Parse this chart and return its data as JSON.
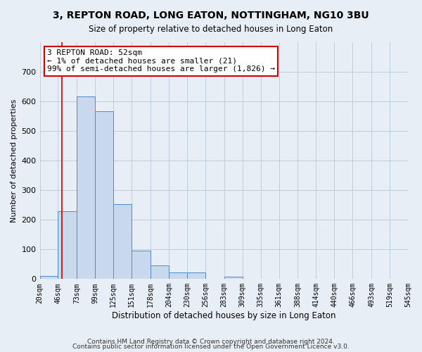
{
  "title": "3, REPTON ROAD, LONG EATON, NOTTINGHAM, NG10 3BU",
  "subtitle": "Size of property relative to detached houses in Long Eaton",
  "xlabel": "Distribution of detached houses by size in Long Eaton",
  "ylabel": "Number of detached properties",
  "bar_edges": [
    20,
    46,
    73,
    99,
    125,
    151,
    178,
    204,
    230,
    256,
    283,
    309,
    335,
    361,
    388,
    414,
    440,
    466,
    493,
    519,
    545
  ],
  "bar_heights": [
    10,
    230,
    617,
    568,
    254,
    95,
    47,
    22,
    22,
    0,
    8,
    0,
    0,
    0,
    0,
    0,
    0,
    0,
    0,
    0
  ],
  "bar_color": "#c8d9ee",
  "bar_edge_color": "#5588cc",
  "property_line_x": 52,
  "property_line_color": "#cc0000",
  "annotation_line1": "3 REPTON ROAD: 52sqm",
  "annotation_line2": "← 1% of detached houses are smaller (21)",
  "annotation_line3": "99% of semi-detached houses are larger (1,826) →",
  "annotation_box_color": "#ffffff",
  "annotation_box_edge_color": "#cc0000",
  "ylim": [
    0,
    800
  ],
  "yticks": [
    0,
    100,
    200,
    300,
    400,
    500,
    600,
    700,
    800
  ],
  "tick_labels": [
    "20sqm",
    "46sqm",
    "73sqm",
    "99sqm",
    "125sqm",
    "151sqm",
    "178sqm",
    "204sqm",
    "230sqm",
    "256sqm",
    "283sqm",
    "309sqm",
    "335sqm",
    "361sqm",
    "388sqm",
    "414sqm",
    "440sqm",
    "466sqm",
    "493sqm",
    "519sqm",
    "545sqm"
  ],
  "footer1": "Contains HM Land Registry data © Crown copyright and database right 2024.",
  "footer2": "Contains public sector information licensed under the Open Government Licence v3.0.",
  "background_color": "#e8eef5",
  "plot_background_color": "#e8eef5"
}
